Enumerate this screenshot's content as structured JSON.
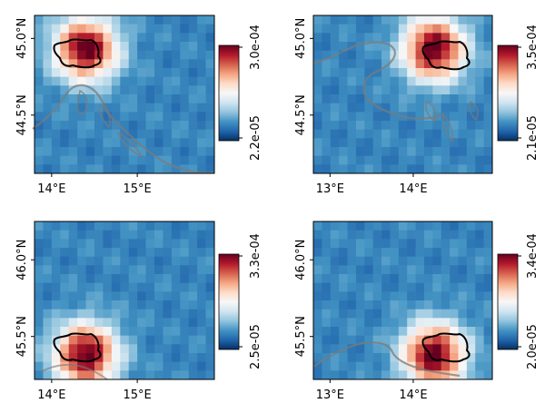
{
  "chart_data": [
    {
      "type": "heatmap",
      "position": "top-left",
      "grid": {
        "cols": 21,
        "rows": 18
      },
      "hotspot": {
        "lon": 14.4,
        "lat": 44.93
      },
      "xlim": [
        13.8,
        15.9
      ],
      "ylim": [
        44.12,
        45.15
      ],
      "x_ticks": [
        {
          "value": 14.0,
          "label": "14°E"
        },
        {
          "value": 15.0,
          "label": "15°E"
        }
      ],
      "y_ticks": [
        {
          "value": 45.0,
          "label": "45.0°N"
        },
        {
          "value": 44.5,
          "label": "44.5°N"
        }
      ],
      "colorbar": {
        "min": 2.2e-05,
        "max": 0.0003,
        "min_label": "2.2e-05",
        "max_label": "3.0e-04",
        "colormap": "RdBu_r"
      }
    },
    {
      "type": "heatmap",
      "position": "top-right",
      "grid": {
        "cols": 21,
        "rows": 18
      },
      "hotspot": {
        "lon": 14.25,
        "lat": 44.93
      },
      "xlim": [
        12.8,
        14.95
      ],
      "ylim": [
        44.12,
        45.15
      ],
      "x_ticks": [
        {
          "value": 13.0,
          "label": "13°E"
        },
        {
          "value": 14.0,
          "label": "14°E"
        }
      ],
      "y_ticks": [
        {
          "value": 45.0,
          "label": "45.0°N"
        },
        {
          "value": 44.5,
          "label": "44.5°N"
        }
      ],
      "colorbar": {
        "min": 2.1e-05,
        "max": 0.00035,
        "min_label": "2.1e-05",
        "max_label": "3.5e-04",
        "colormap": "RdBu_r"
      }
    },
    {
      "type": "heatmap",
      "position": "bottom-left",
      "grid": {
        "cols": 21,
        "rows": 18
      },
      "hotspot": {
        "lon": 14.4,
        "lat": 45.38
      },
      "xlim": [
        13.8,
        15.9
      ],
      "ylim": [
        45.22,
        46.25
      ],
      "x_ticks": [
        {
          "value": 14.0,
          "label": "14°E"
        },
        {
          "value": 15.0,
          "label": "15°E"
        }
      ],
      "y_ticks": [
        {
          "value": 46.0,
          "label": "46.0°N"
        },
        {
          "value": 45.5,
          "label": "45.5°N"
        }
      ],
      "colorbar": {
        "min": 2.5e-05,
        "max": 0.00033,
        "min_label": "2.5e-05",
        "max_label": "3.3e-04",
        "colormap": "RdBu_r"
      }
    },
    {
      "type": "heatmap",
      "position": "bottom-right",
      "grid": {
        "cols": 21,
        "rows": 18
      },
      "hotspot": {
        "lon": 14.25,
        "lat": 45.38
      },
      "xlim": [
        12.8,
        14.95
      ],
      "ylim": [
        45.22,
        46.25
      ],
      "x_ticks": [
        {
          "value": 13.0,
          "label": "13°E"
        },
        {
          "value": 14.0,
          "label": "14°E"
        }
      ],
      "y_ticks": [
        {
          "value": 46.0,
          "label": "46.0°N"
        },
        {
          "value": 45.5,
          "label": "45.5°N"
        }
      ],
      "colorbar": {
        "min": 2e-05,
        "max": 0.00034,
        "min_label": "2.0e-05",
        "max_label": "3.4e-04",
        "colormap": "RdBu_r"
      }
    }
  ]
}
